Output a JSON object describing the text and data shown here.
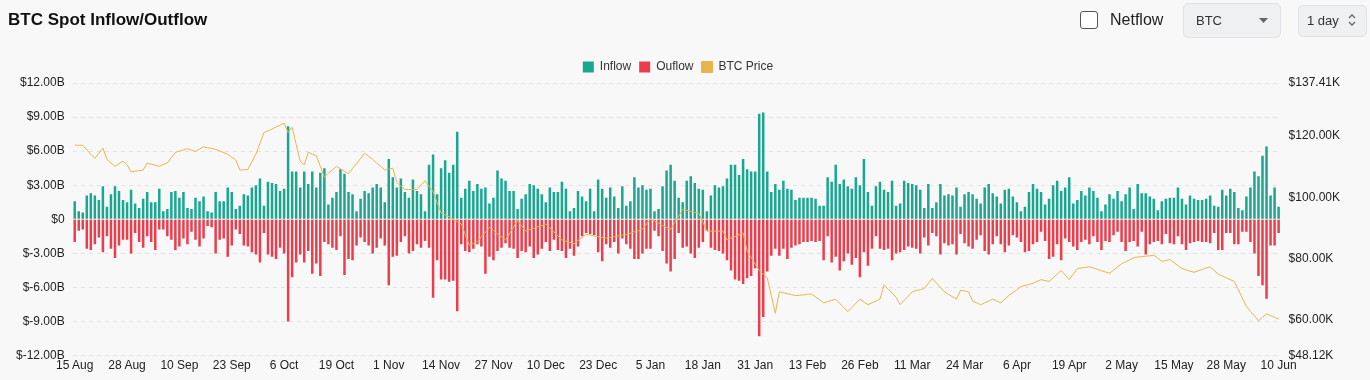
{
  "chart_data": {
    "type": "bar",
    "title": "BTC Spot Inflow/Outflow",
    "annotations": [
      "Netflow",
      "BTC",
      "1 day"
    ],
    "categories": [
      "15 Aug",
      null,
      null,
      null,
      null,
      null,
      null,
      null,
      null,
      null,
      null,
      null,
      null,
      "28 Aug",
      null,
      null,
      null,
      null,
      null,
      null,
      null,
      null,
      null,
      null,
      null,
      null,
      "10 Sep",
      null,
      null,
      null,
      null,
      null,
      null,
      null,
      null,
      null,
      null,
      null,
      null,
      "23 Sep",
      null,
      null,
      null,
      null,
      null,
      null,
      null,
      null,
      null,
      null,
      null,
      null,
      "6 Oct",
      null,
      null,
      null,
      null,
      null,
      null,
      null,
      null,
      null,
      null,
      null,
      null,
      "19 Oct",
      null,
      null,
      null,
      null,
      null,
      null,
      null,
      null,
      null,
      null,
      null,
      null,
      "1 Nov",
      null,
      null,
      null,
      null,
      null,
      null,
      null,
      null,
      null,
      null,
      null,
      null,
      "14 Nov",
      null,
      null,
      null,
      null,
      null,
      null,
      null,
      null,
      null,
      null,
      null,
      null,
      "27 Nov",
      null,
      null,
      null,
      null,
      null,
      null,
      null,
      null,
      null,
      null,
      null,
      null,
      "10 Dec",
      null,
      null,
      null,
      null,
      null,
      null,
      null,
      null,
      null,
      null,
      null,
      null,
      "23 Dec",
      null,
      null,
      null,
      null,
      null,
      null,
      null,
      null,
      null,
      null,
      null,
      null,
      "5 Jan",
      null,
      null,
      null,
      null,
      null,
      null,
      null,
      null,
      null,
      null,
      null,
      null,
      "18 Jan",
      null,
      null,
      null,
      null,
      null,
      null,
      null,
      null,
      null,
      null,
      null,
      null,
      "31 Jan",
      null,
      null,
      null,
      null,
      null,
      null,
      null,
      null,
      null,
      null,
      null,
      null,
      "13 Feb",
      null,
      null,
      null,
      null,
      null,
      null,
      null,
      null,
      null,
      null,
      null,
      null,
      "26 Feb",
      null,
      null,
      null,
      null,
      null,
      null,
      null,
      null,
      null,
      null,
      null,
      null,
      "11 Mar",
      null,
      null,
      null,
      null,
      null,
      null,
      null,
      null,
      null,
      null,
      null,
      null,
      "24 Mar",
      null,
      null,
      null,
      null,
      null,
      null,
      null,
      null,
      null,
      null,
      null,
      null,
      "6 Apr",
      null,
      null,
      null,
      null,
      null,
      null,
      null,
      null,
      null,
      null,
      null,
      null,
      "19 Apr",
      null,
      null,
      null,
      null,
      null,
      null,
      null,
      null,
      null,
      null,
      null,
      null,
      "2 May",
      null,
      null,
      null,
      null,
      null,
      null,
      null,
      null,
      null,
      null,
      null,
      null,
      "15 May",
      null,
      null,
      null,
      null,
      null,
      null,
      null,
      null,
      null,
      null,
      null,
      null,
      "28 May",
      null,
      null,
      null,
      null,
      null,
      null,
      null,
      null,
      null,
      null,
      null,
      null,
      "10 Jun"
    ],
    "ylim": [
      -12,
      12
    ],
    "yticks": [
      {
        "value": -12,
        "label": "$-12.00B"
      },
      {
        "value": -9,
        "label": "$-9.00B"
      },
      {
        "value": -6,
        "label": "$-6.00B"
      },
      {
        "value": -3,
        "label": "$-3.00B"
      },
      {
        "value": 0,
        "label": "$0"
      },
      {
        "value": 3,
        "label": "$3.00B"
      },
      {
        "value": 6,
        "label": "$6.00B"
      },
      {
        "value": 9,
        "label": "$9.00B"
      },
      {
        "value": 12,
        "label": "$12.00B"
      }
    ],
    "y2lim": [
      48.12,
      137.41
    ],
    "y2ticks": [
      {
        "value": 48.12,
        "label": "$48.12K"
      },
      {
        "value": 60,
        "label": "$60.00K"
      },
      {
        "value": 80,
        "label": "$80.00K"
      },
      {
        "value": 100,
        "label": "$100.00K"
      },
      {
        "value": 120,
        "label": "$120.00K"
      },
      {
        "value": 137.41,
        "label": "$137.41K"
      }
    ],
    "stacked": true,
    "grid": "y",
    "legend": "top",
    "marker": "none",
    "line_style": "solid",
    "series": [
      {
        "name": "Inflow",
        "color": "#1aa68f",
        "values": [
          1.6,
          0.7,
          0.6,
          2.1,
          2.3,
          2.1,
          1.7,
          2.9,
          1.1,
          2.2,
          2.9,
          2.5,
          1.7,
          1.5,
          2.6,
          1.4,
          1.0,
          1.8,
          2.4,
          1.5,
          1.5,
          2.7,
          0.7,
          0.9,
          2.4,
          2.5,
          1.9,
          2.4,
          1.0,
          0.9,
          1.9,
          1.6,
          2.0,
          0.7,
          0.6,
          2.4,
          1.6,
          1.6,
          2.8,
          2.4,
          0.9,
          1.2,
          2.2,
          2.1,
          2.8,
          3.0,
          3.6,
          1.2,
          3.3,
          3.2,
          3.1,
          2.5,
          2.7,
          8.2,
          4.2,
          4.2,
          2.8,
          4.2,
          3.1,
          4.2,
          2.8,
          4.1,
          4.5,
          1.3,
          1.9,
          2.4,
          4.4,
          4.0,
          2.4,
          2.2,
          0.7,
          1.8,
          2.5,
          2.3,
          2.8,
          3.1,
          2.8,
          1.5,
          5.3,
          3.7,
          2.8,
          3.6,
          2.4,
          1.9,
          3.5,
          2.5,
          2.2,
          0.7,
          4.8,
          5.7,
          2.2,
          4.5,
          5.2,
          4.1,
          4.8,
          7.7,
          1.9,
          2.7,
          3.4,
          2.5,
          3.1,
          2.7,
          2.8,
          1.4,
          1.9,
          4.3,
          3.6,
          3.4,
          2.5,
          2.5,
          0.9,
          1.8,
          2.2,
          3.1,
          3.0,
          2.7,
          2.2,
          1.5,
          2.8,
          2.4,
          2.4,
          3.3,
          2.7,
          0.7,
          1.0,
          2.5,
          2.0,
          1.6,
          2.7,
          0.7,
          3.5,
          2.7,
          1.9,
          2.8,
          2.0,
          1.0,
          2.9,
          1.2,
          1.6,
          3.7,
          2.8,
          3.0,
          2.6,
          2.7,
          0.7,
          0.9,
          2.9,
          4.3,
          4.8,
          3.4,
          1.9,
          1.5,
          3.4,
          3.8,
          3.2,
          2.7,
          2.6,
          0.7,
          2.1,
          3.0,
          2.8,
          2.9,
          3.6,
          4.8,
          4.8,
          3.9,
          5.3,
          4.4,
          4.2,
          4.2,
          9.3,
          9.4,
          4.2,
          2.4,
          3.1,
          2.6,
          3.4,
          2.7,
          2.6,
          1.7,
          1.9,
          1.9,
          1.9,
          1.9,
          1.8,
          1.2,
          1.2,
          3.7,
          3.3,
          4.8,
          3.1,
          3.5,
          2.9,
          2.7,
          3.7,
          3.0,
          5.3,
          2.4,
          1.2,
          2.9,
          3.3,
          2.6,
          2.4,
          3.4,
          1.2,
          1.4,
          3.4,
          3.2,
          3.1,
          3.0,
          2.6,
          1.0,
          3.1,
          1.0,
          1.5,
          3.1,
          2.1,
          2.2,
          2.1,
          2.8,
          1.1,
          2.2,
          2.4,
          2.2,
          1.8,
          1.4,
          2.8,
          3.1,
          2.3,
          2.0,
          1.4,
          2.6,
          2.7,
          2.0,
          1.5,
          0.7,
          1.1,
          2.4,
          3.1,
          2.7,
          2.4,
          1.3,
          1.8,
          3.0,
          3.4,
          2.5,
          2.8,
          3.7,
          1.4,
          1.7,
          2.5,
          2.1,
          2.8,
          2.5,
          1.9,
          0.7,
          1.3,
          2.2,
          1.8,
          2.5,
          1.6,
          2.2,
          2.8,
          0.9,
          3.1,
          2.3,
          2.3,
          2.0,
          1.8,
          0.8,
          1.6,
          1.8,
          1.9,
          1.9,
          2.8,
          1.8,
          1.3,
          2.1,
          1.8,
          1.7,
          1.7,
          1.8,
          2.1,
          1.2,
          1.1,
          2.6,
          2.1,
          2.7,
          2.4,
          1.0,
          0.8,
          2.0,
          2.8,
          4.2,
          3.8,
          5.6,
          6.4,
          2.1,
          2.8,
          1.1
        ]
      },
      {
        "name": "Ouflow",
        "color": "#ec3d4c",
        "values": [
          -2.0,
          -1.0,
          -0.9,
          -2.6,
          -2.7,
          -2.2,
          -1.6,
          -2.9,
          -1.5,
          -2.6,
          -3.4,
          -2.3,
          -1.8,
          -1.8,
          -3.0,
          -1.2,
          -2.0,
          -2.5,
          -1.5,
          -2.0,
          -2.7,
          -0.9,
          -0.9,
          -1.5,
          -1.8,
          -2.7,
          -2.4,
          -1.7,
          -2.2,
          -1.1,
          -1.8,
          -2.4,
          -1.7,
          -0.6,
          -0.7,
          -3.0,
          -1.8,
          -1.7,
          -3.3,
          -2.3,
          -0.9,
          -1.3,
          -2.3,
          -2.4,
          -2.9,
          -3.1,
          -3.8,
          -1.2,
          -3.1,
          -3.3,
          -3.5,
          -2.5,
          -3.0,
          -9.0,
          -5.1,
          -3.8,
          -3.1,
          -3.8,
          -2.8,
          -4.8,
          -3.9,
          -5.0,
          -2.0,
          -2.2,
          -2.5,
          -2.7,
          -1.5,
          -4.9,
          -3.5,
          -3.6,
          -2.3,
          -1.6,
          -2.0,
          -2.3,
          -3.0,
          -2.5,
          -1.7,
          -2.3,
          -5.8,
          -3.3,
          -3.2,
          -2.0,
          -1.5,
          -3.0,
          -2.8,
          -2.2,
          -2.5,
          -1.9,
          -2.5,
          -6.9,
          -3.6,
          -5.3,
          -5.3,
          -5.5,
          -5.4,
          -8.1,
          -2.2,
          -2.8,
          -2.9,
          -2.6,
          -2.2,
          -2.4,
          -4.8,
          -3.3,
          -3.6,
          -2.8,
          -2.5,
          -2.1,
          -2.5,
          -2.6,
          -3.4,
          -2.8,
          -2.9,
          -2.4,
          -3.4,
          -3.1,
          -2.6,
          -2.0,
          -2.8,
          -1.8,
          -2.7,
          -2.8,
          -3.4,
          -2.6,
          -3.2,
          -2.4,
          -1.5,
          -1.2,
          -1.3,
          -1.4,
          -2.9,
          -3.7,
          -2.2,
          -2.5,
          -2.0,
          -3.0,
          -1.7,
          -2.2,
          -2.6,
          -3.5,
          -3.5,
          -3.0,
          -2.6,
          -2.6,
          -1.0,
          -1.5,
          -2.8,
          -3.9,
          -4.6,
          -3.5,
          -1.2,
          -2.5,
          -2.4,
          -3.0,
          -3.4,
          -2.5,
          -2.0,
          -1.0,
          -2.5,
          -2.7,
          -2.8,
          -3.0,
          -3.6,
          -4.5,
          -5.3,
          -5.4,
          -5.7,
          -5.2,
          -5.0,
          -4.3,
          -10.3,
          -8.6,
          -4.6,
          -3.2,
          -2.6,
          -3.2,
          -2.6,
          -3.5,
          -2.5,
          -2.3,
          -2.2,
          -2.0,
          -2.0,
          -1.9,
          -2.0,
          -1.9,
          -3.6,
          -1.5,
          -3.8,
          -3.3,
          -4.5,
          -3.7,
          -3.0,
          -4.0,
          -3.4,
          -5.1,
          -2.9,
          -4.1,
          -2.6,
          -1.5,
          -2.6,
          -2.7,
          -2.6,
          -3.6,
          -3.0,
          -2.9,
          -2.7,
          -2.4,
          -2.5,
          -2.6,
          -3.0,
          -1.6,
          -2.3,
          -1.2,
          -1.5,
          -3.1,
          -2.1,
          -2.3,
          -2.2,
          -3.1,
          -1.3,
          -2.1,
          -2.4,
          -2.6,
          -1.8,
          -1.4,
          -2.8,
          -3.1,
          -2.2,
          -1.5,
          -2.2,
          -2.9,
          -2.3,
          -1.4,
          -1.6,
          -2.0,
          -2.9,
          -2.8,
          -2.2,
          -2.0,
          -1.1,
          -1.9,
          -3.5,
          -3.3,
          -2.2,
          -3.6,
          -1.7,
          -2.0,
          -2.4,
          -2.7,
          -2.0,
          -1.8,
          -2.2,
          -1.5,
          -2.0,
          -2.7,
          -1.9,
          -2.0,
          -1.4,
          -1.1,
          -2.0,
          -2.8,
          -2.0,
          -1.9,
          -2.4,
          -1.1,
          -3.1,
          -2.2,
          -2.0,
          -1.9,
          -2.2,
          -1.3,
          -2.1,
          -2.2,
          -1.5,
          -2.2,
          -2.7,
          -2.1,
          -2.0,
          -1.9,
          -2.0,
          -2.0,
          -2.1,
          -1.2,
          -2.7,
          -2.7,
          -1.2,
          -1.2,
          -2.2,
          -2.2,
          -1.1,
          -1.1,
          -2.0,
          -3.0,
          -5.0,
          -5.8,
          -7.0,
          -2.3,
          -2.3,
          -1.2
        ]
      },
      {
        "name": "BTC Price",
        "type": "line",
        "axis": "y2",
        "color": "#e9b44c",
        "values": [
          117.1,
          117.0,
          117.0,
          115.5,
          114.1,
          112.7,
          114.4,
          116.1,
          112.4,
          111.2,
          110.1,
          111.0,
          111.8,
          110.6,
          108.3,
          108.5,
          108.7,
          108.9,
          111.2,
          110.8,
          110.5,
          110.1,
          110.7,
          111.2,
          113.0,
          114.7,
          115.1,
          115.5,
          115.9,
          115.4,
          115.0,
          115.8,
          116.5,
          116.2,
          116.0,
          115.7,
          115.2,
          114.6,
          114.1,
          113.1,
          112.2,
          108.9,
          109.0,
          109.1,
          111.6,
          114.1,
          117.6,
          121.2,
          121.7,
          122.3,
          123.0,
          123.6,
          124.3,
          121.2,
          122.9,
          117.3,
          111.8,
          110.6,
          114.7,
          114.1,
          113.6,
          110.1,
          106.6,
          107.8,
          109.0,
          110.1,
          109.3,
          108.5,
          107.7,
          109.4,
          111.0,
          112.7,
          114.4,
          113.4,
          112.4,
          111.2,
          110.1,
          108.9,
          109.2,
          109.5,
          104.8,
          103.6,
          102.5,
          102.5,
          102.5,
          102.5,
          104.0,
          105.4,
          103.6,
          101.9,
          98.3,
          94.8,
          94.2,
          93.6,
          92.8,
          92.0,
          91.3,
          87.8,
          84.3,
          84.8,
          85.4,
          87.0,
          88.5,
          90.1,
          89.1,
          88.0,
          87.0,
          86.0,
          88.1,
          90.3,
          92.4,
          90.6,
          88.9,
          89.4,
          89.8,
          90.3,
          90.7,
          91.2,
          89.9,
          88.6,
          87.3,
          86.0,
          85.6,
          85.2,
          84.8,
          85.8,
          86.8,
          87.8,
          87.6,
          87.3,
          87.1,
          86.8,
          86.6,
          86.8,
          87.1,
          87.3,
          87.6,
          87.8,
          88.2,
          88.7,
          89.1,
          89.5,
          91.2,
          93.0,
          92.2,
          91.5,
          90.7,
          90.1,
          89.5,
          91.7,
          93.8,
          96.0,
          95.7,
          95.4,
          95.0,
          94.7,
          91.8,
          88.9,
          88.9,
          88.9,
          88.9,
          88.9,
          86.0,
          86.6,
          87.1,
          87.7,
          88.3,
          82.4,
          80.3,
          78.1,
          76.0,
          74.8,
          73.6,
          67.8,
          62.0,
          69.0,
          68.7,
          68.4,
          68.1,
          67.8,
          67.9,
          68.0,
          68.2,
          68.3,
          67.3,
          66.4,
          65.4,
          65.8,
          66.2,
          66.6,
          65.2,
          63.9,
          62.5,
          63.9,
          65.2,
          66.6,
          65.7,
          64.8,
          65.4,
          66.0,
          66.6,
          71.3,
          69.9,
          68.6,
          67.2,
          64.8,
          66.2,
          67.6,
          69.0,
          69.4,
          69.7,
          70.1,
          71.8,
          73.4,
          71.9,
          70.5,
          69.0,
          68.2,
          67.4,
          66.6,
          69.5,
          69.3,
          69.0,
          66.0,
          65.4,
          64.8,
          65.4,
          66.0,
          66.6,
          66.0,
          65.4,
          66.6,
          67.8,
          68.8,
          69.7,
          70.7,
          71.1,
          71.4,
          71.8,
          72.4,
          73.0,
          72.7,
          72.4,
          73.6,
          74.8,
          76.0,
          74.5,
          73.0,
          74.8,
          76.6,
          76.8,
          77.0,
          77.2,
          76.8,
          76.4,
          75.9,
          75.5,
          75.1,
          76.1,
          77.2,
          78.2,
          78.9,
          79.5,
          80.2,
          80.4,
          80.5,
          80.7,
          80.8,
          81.0,
          80.0,
          79.0,
          79.3,
          79.6,
          78.6,
          77.6,
          76.6,
          76.2,
          75.8,
          75.4,
          75.9,
          76.3,
          76.8,
          77.2,
          76.0,
          74.8,
          74.2,
          73.6,
          73.0,
          72.4,
          69.7,
          66.9,
          64.2,
          62.6,
          61.1,
          59.5,
          60.7,
          61.8,
          61.2,
          60.7,
          60.1
        ]
      }
    ]
  }
}
